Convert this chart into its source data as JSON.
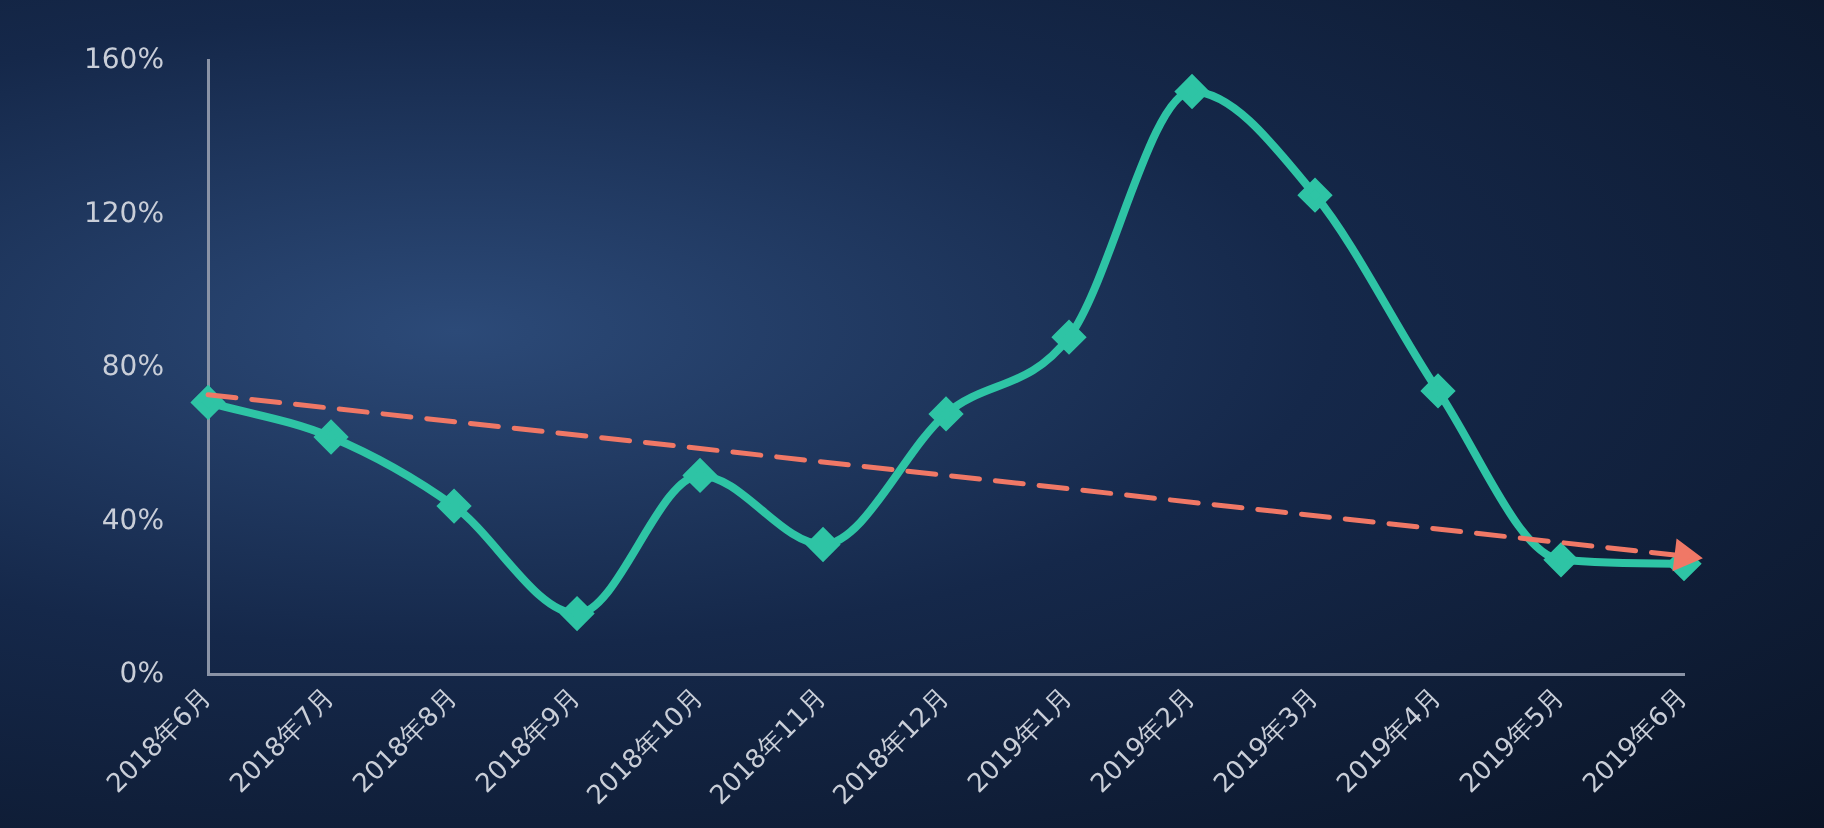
{
  "chart_data": {
    "type": "line",
    "categories": [
      "2018年6月",
      "2018年7月",
      "2018年8月",
      "2018年9月",
      "2018年10月",
      "2018年11月",
      "2018年12月",
      "2019年1月",
      "2019年2月",
      "2019年3月",
      "2019年4月",
      "2019年5月",
      "2019年6月"
    ],
    "series": [
      {
        "type": "line",
        "color": "#2ec4a5",
        "marker": "diamond",
        "values": [
          71,
          62,
          44,
          16,
          52,
          34,
          68,
          88,
          152,
          125,
          74,
          30,
          29
        ]
      },
      {
        "type": "line",
        "color": "#f07866",
        "marker": "triangle",
        "line_style": "dashed",
        "values": [
          73,
          null,
          null,
          null,
          null,
          null,
          null,
          null,
          null,
          null,
          null,
          null,
          31
        ]
      }
    ],
    "ylim": [
      0,
      160
    ],
    "yticks": [
      {
        "value": 0,
        "label": "0%"
      },
      {
        "value": 40,
        "label": "40%"
      },
      {
        "value": 80,
        "label": "80%"
      },
      {
        "value": 120,
        "label": "120%"
      },
      {
        "value": 160,
        "label": "160%"
      }
    ],
    "grid": false,
    "legend": false
  }
}
